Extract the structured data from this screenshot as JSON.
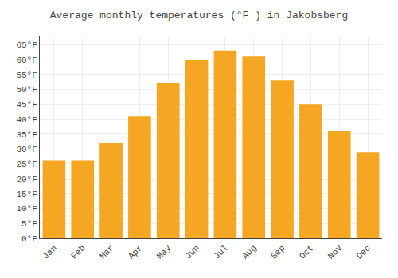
{
  "chart_data": {
    "type": "bar",
    "title": "Average monthly temperatures (°F ) in Jakobsberg",
    "categories": [
      "Jan",
      "Feb",
      "Mar",
      "Apr",
      "May",
      "Jun",
      "Jul",
      "Aug",
      "Sep",
      "Oct",
      "Nov",
      "Dec"
    ],
    "values": [
      26,
      26,
      32,
      41,
      52,
      60,
      63,
      61,
      53,
      45,
      36,
      29
    ],
    "color": "#F5A623",
    "ylim": [
      0,
      68
    ],
    "yticks": [
      {
        "value": 0,
        "label": "0°F"
      },
      {
        "value": 5,
        "label": "5°F"
      },
      {
        "value": 10,
        "label": "10°F"
      },
      {
        "value": 15,
        "label": "15°F"
      },
      {
        "value": 20,
        "label": "20°F"
      },
      {
        "value": 25,
        "label": "25°F"
      },
      {
        "value": 30,
        "label": "30°F"
      },
      {
        "value": 35,
        "label": "35°F"
      },
      {
        "value": 40,
        "label": "40°F"
      },
      {
        "value": 45,
        "label": "45°F"
      },
      {
        "value": 50,
        "label": "50°F"
      },
      {
        "value": 55,
        "label": "55°F"
      },
      {
        "value": 60,
        "label": "60°F"
      },
      {
        "value": 65,
        "label": "65°F"
      }
    ],
    "grid": true
  }
}
